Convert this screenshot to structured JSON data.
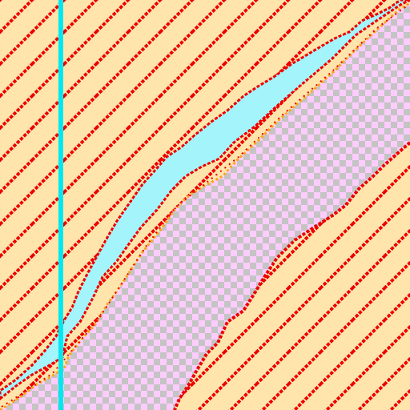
{
  "map": {
    "colors": {
      "sand": "#ffe4ac",
      "hatch": "#ee0000",
      "water": "#a4f4fc",
      "water_line": "#00e8ef",
      "transparent_a": "#fcccfc",
      "transparent_b": "#c4c4c4",
      "edge_orange": "#fca51e",
      "edge_red": "#ee0000"
    },
    "layers": [
      "sand-hatch-area",
      "transparent-checker-area",
      "water-channel",
      "boundary-line"
    ]
  }
}
